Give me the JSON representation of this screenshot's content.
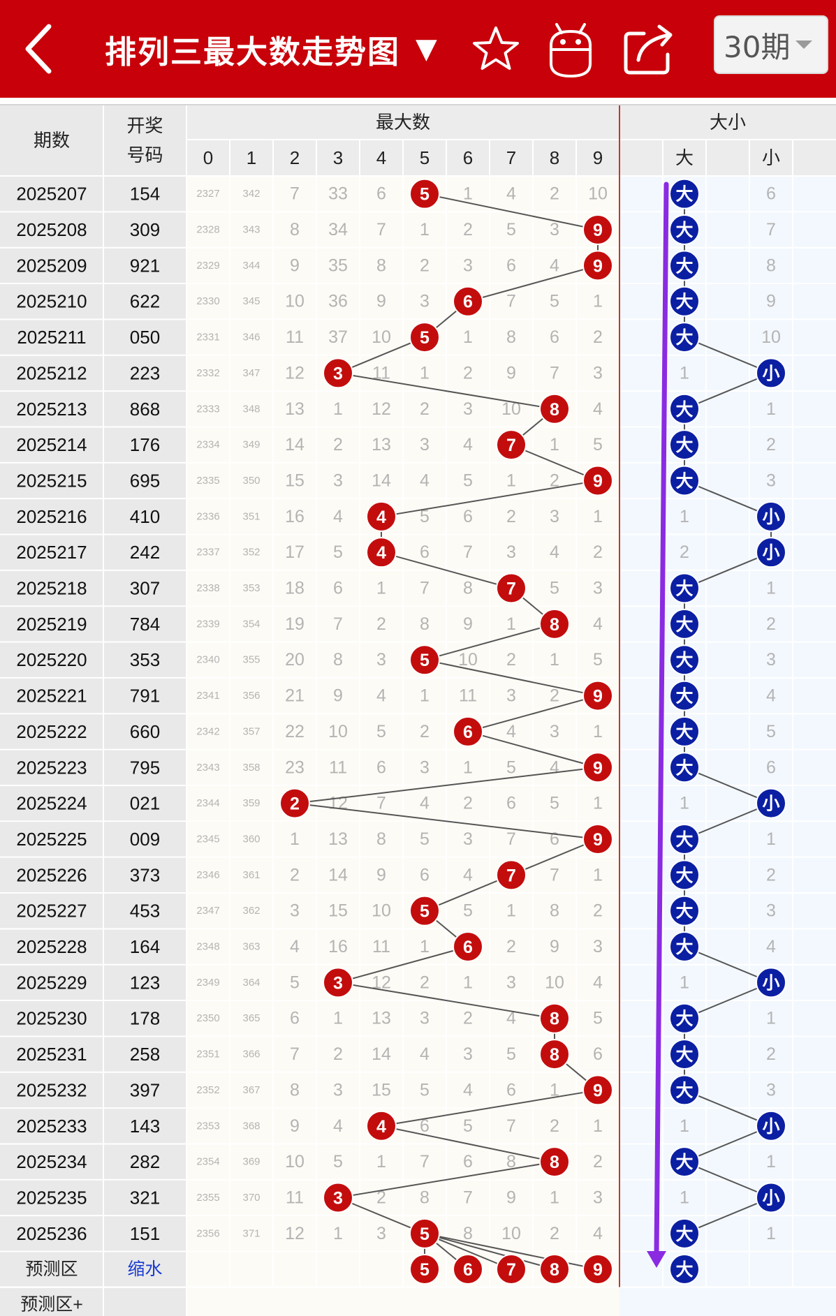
{
  "header": {
    "title": "排列三最大数走势图",
    "title_dropdown_icon": "triangle-down",
    "back_icon": "chevron-left",
    "favorite_icon": "star-outline",
    "robot_icon": "android-robot",
    "share_icon": "share-arrow",
    "period_select": "30期",
    "bg_color": "#c8000a"
  },
  "table": {
    "col_period": "期数",
    "col_draw": "开奖\n号码",
    "group_max": "最大数",
    "group_size": "大小",
    "digits": [
      "0",
      "1",
      "2",
      "3",
      "4",
      "5",
      "6",
      "7",
      "8",
      "9"
    ],
    "size_big": "大",
    "size_small": "小",
    "predict_label": "预测区",
    "predict_link": "缩水",
    "predict_plus_label": "预测区+",
    "predict_balls": [
      "5",
      "6",
      "7",
      "8",
      "9"
    ],
    "predict_size": "大",
    "ball_color_max": "#c30d0d",
    "ball_color_size": "#0b1fa3",
    "arrow_color": "#8a2be2",
    "rows": [
      {
        "p": "2025207",
        "d": "154",
        "c": [
          "2327",
          "342",
          "7",
          "33",
          "6",
          "5",
          "1",
          "4",
          "2",
          "10"
        ],
        "m": 5,
        "s": "大",
        "sc": "6"
      },
      {
        "p": "2025208",
        "d": "309",
        "c": [
          "2328",
          "343",
          "8",
          "34",
          "7",
          "1",
          "2",
          "5",
          "3",
          "9"
        ],
        "m": 9,
        "s": "大",
        "sc": "7"
      },
      {
        "p": "2025209",
        "d": "921",
        "c": [
          "2329",
          "344",
          "9",
          "35",
          "8",
          "2",
          "3",
          "6",
          "4",
          "9"
        ],
        "m": 9,
        "s": "大",
        "sc": "8"
      },
      {
        "p": "2025210",
        "d": "622",
        "c": [
          "2330",
          "345",
          "10",
          "36",
          "9",
          "3",
          "6",
          "7",
          "5",
          "1"
        ],
        "m": 6,
        "s": "大",
        "sc": "9"
      },
      {
        "p": "2025211",
        "d": "050",
        "c": [
          "2331",
          "346",
          "11",
          "37",
          "10",
          "5",
          "1",
          "8",
          "6",
          "2"
        ],
        "m": 5,
        "s": "大",
        "sc": "10"
      },
      {
        "p": "2025212",
        "d": "223",
        "c": [
          "2332",
          "347",
          "12",
          "3",
          "11",
          "1",
          "2",
          "9",
          "7",
          "3"
        ],
        "m": 3,
        "s": "小",
        "sc": "1"
      },
      {
        "p": "2025213",
        "d": "868",
        "c": [
          "2333",
          "348",
          "13",
          "1",
          "12",
          "2",
          "3",
          "10",
          "8",
          "4"
        ],
        "m": 8,
        "s": "大",
        "sc": "1"
      },
      {
        "p": "2025214",
        "d": "176",
        "c": [
          "2334",
          "349",
          "14",
          "2",
          "13",
          "3",
          "4",
          "7",
          "1",
          "5"
        ],
        "m": 7,
        "s": "大",
        "sc": "2"
      },
      {
        "p": "2025215",
        "d": "695",
        "c": [
          "2335",
          "350",
          "15",
          "3",
          "14",
          "4",
          "5",
          "1",
          "2",
          "9"
        ],
        "m": 9,
        "s": "大",
        "sc": "3"
      },
      {
        "p": "2025216",
        "d": "410",
        "c": [
          "2336",
          "351",
          "16",
          "4",
          "4",
          "5",
          "6",
          "2",
          "3",
          "1"
        ],
        "m": 4,
        "s": "小",
        "sc": "1"
      },
      {
        "p": "2025217",
        "d": "242",
        "c": [
          "2337",
          "352",
          "17",
          "5",
          "4",
          "6",
          "7",
          "3",
          "4",
          "2"
        ],
        "m": 4,
        "s": "小",
        "sc": "2"
      },
      {
        "p": "2025218",
        "d": "307",
        "c": [
          "2338",
          "353",
          "18",
          "6",
          "1",
          "7",
          "8",
          "7",
          "5",
          "3"
        ],
        "m": 7,
        "s": "大",
        "sc": "1"
      },
      {
        "p": "2025219",
        "d": "784",
        "c": [
          "2339",
          "354",
          "19",
          "7",
          "2",
          "8",
          "9",
          "1",
          "8",
          "4"
        ],
        "m": 8,
        "s": "大",
        "sc": "2"
      },
      {
        "p": "2025220",
        "d": "353",
        "c": [
          "2340",
          "355",
          "20",
          "8",
          "3",
          "5",
          "10",
          "2",
          "1",
          "5"
        ],
        "m": 5,
        "s": "大",
        "sc": "3"
      },
      {
        "p": "2025221",
        "d": "791",
        "c": [
          "2341",
          "356",
          "21",
          "9",
          "4",
          "1",
          "11",
          "3",
          "2",
          "9"
        ],
        "m": 9,
        "s": "大",
        "sc": "4"
      },
      {
        "p": "2025222",
        "d": "660",
        "c": [
          "2342",
          "357",
          "22",
          "10",
          "5",
          "2",
          "6",
          "4",
          "3",
          "1"
        ],
        "m": 6,
        "s": "大",
        "sc": "5"
      },
      {
        "p": "2025223",
        "d": "795",
        "c": [
          "2343",
          "358",
          "23",
          "11",
          "6",
          "3",
          "1",
          "5",
          "4",
          "9"
        ],
        "m": 9,
        "s": "大",
        "sc": "6"
      },
      {
        "p": "2025224",
        "d": "021",
        "c": [
          "2344",
          "359",
          "2",
          "12",
          "7",
          "4",
          "2",
          "6",
          "5",
          "1"
        ],
        "m": 2,
        "s": "小",
        "sc": "1"
      },
      {
        "p": "2025225",
        "d": "009",
        "c": [
          "2345",
          "360",
          "1",
          "13",
          "8",
          "5",
          "3",
          "7",
          "6",
          "9"
        ],
        "m": 9,
        "s": "大",
        "sc": "1"
      },
      {
        "p": "2025226",
        "d": "373",
        "c": [
          "2346",
          "361",
          "2",
          "14",
          "9",
          "6",
          "4",
          "7",
          "7",
          "1"
        ],
        "m": 7,
        "s": "大",
        "sc": "2"
      },
      {
        "p": "2025227",
        "d": "453",
        "c": [
          "2347",
          "362",
          "3",
          "15",
          "10",
          "5",
          "5",
          "1",
          "8",
          "2"
        ],
        "m": 5,
        "s": "大",
        "sc": "3"
      },
      {
        "p": "2025228",
        "d": "164",
        "c": [
          "2348",
          "363",
          "4",
          "16",
          "11",
          "1",
          "6",
          "2",
          "9",
          "3"
        ],
        "m": 6,
        "s": "大",
        "sc": "4"
      },
      {
        "p": "2025229",
        "d": "123",
        "c": [
          "2349",
          "364",
          "5",
          "3",
          "12",
          "2",
          "1",
          "3",
          "10",
          "4"
        ],
        "m": 3,
        "s": "小",
        "sc": "1"
      },
      {
        "p": "2025230",
        "d": "178",
        "c": [
          "2350",
          "365",
          "6",
          "1",
          "13",
          "3",
          "2",
          "4",
          "8",
          "5"
        ],
        "m": 8,
        "s": "大",
        "sc": "1"
      },
      {
        "p": "2025231",
        "d": "258",
        "c": [
          "2351",
          "366",
          "7",
          "2",
          "14",
          "4",
          "3",
          "5",
          "8",
          "6"
        ],
        "m": 8,
        "s": "大",
        "sc": "2"
      },
      {
        "p": "2025232",
        "d": "397",
        "c": [
          "2352",
          "367",
          "8",
          "3",
          "15",
          "5",
          "4",
          "6",
          "1",
          "9"
        ],
        "m": 9,
        "s": "大",
        "sc": "3"
      },
      {
        "p": "2025233",
        "d": "143",
        "c": [
          "2353",
          "368",
          "9",
          "4",
          "4",
          "6",
          "5",
          "7",
          "2",
          "1"
        ],
        "m": 4,
        "s": "小",
        "sc": "1"
      },
      {
        "p": "2025234",
        "d": "282",
        "c": [
          "2354",
          "369",
          "10",
          "5",
          "1",
          "7",
          "6",
          "8",
          "8",
          "2"
        ],
        "m": 8,
        "s": "大",
        "sc": "1"
      },
      {
        "p": "2025235",
        "d": "321",
        "c": [
          "2355",
          "370",
          "11",
          "3",
          "2",
          "8",
          "7",
          "9",
          "1",
          "3"
        ],
        "m": 3,
        "s": "小",
        "sc": "1"
      },
      {
        "p": "2025236",
        "d": "151",
        "c": [
          "2356",
          "371",
          "12",
          "1",
          "3",
          "5",
          "8",
          "10",
          "2",
          "4"
        ],
        "m": 5,
        "s": "大",
        "sc": "1"
      }
    ]
  }
}
